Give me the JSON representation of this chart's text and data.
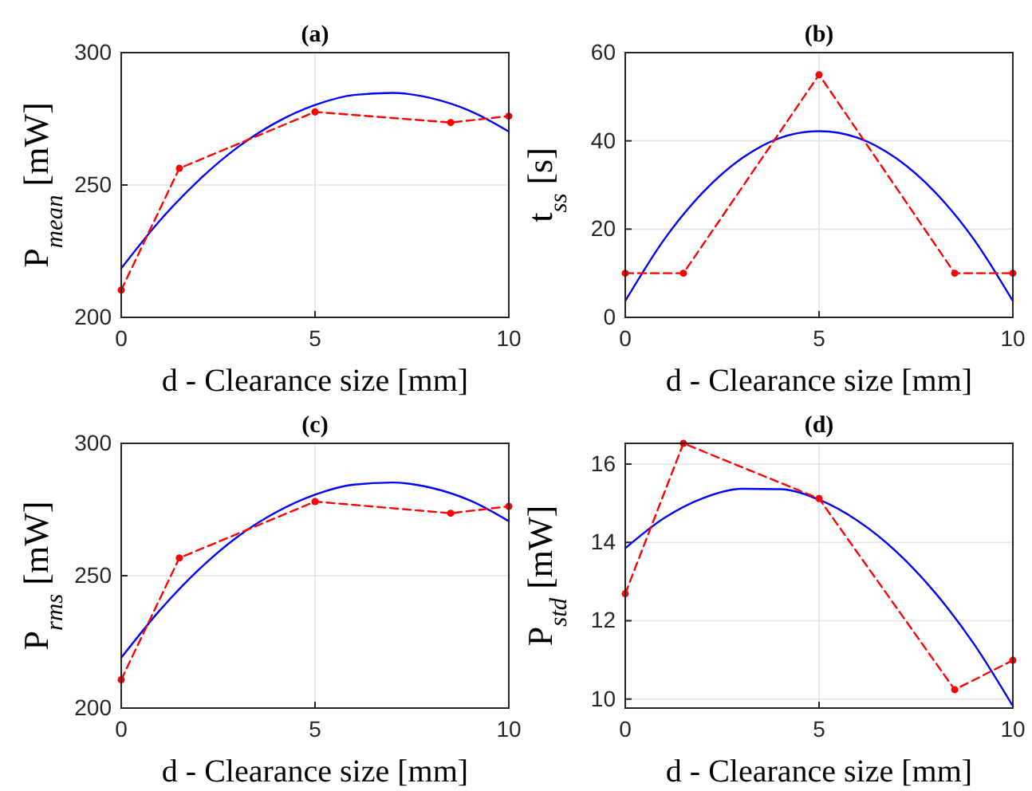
{
  "chart_data": [
    {
      "type": "line",
      "title": "(a)",
      "xlabel": "d - Clearance size [mm]",
      "ylabel": "P$_{mean}$ [mW]",
      "xlim": [
        0,
        10
      ],
      "xticks": [
        0,
        5,
        10
      ],
      "ylim": [
        200,
        300
      ],
      "yticks": [
        200,
        250,
        300
      ],
      "grid": true,
      "series": [
        {
          "type": "line",
          "color": "#0000ff",
          "line_style": "solid",
          "marker": "none",
          "x": [
            0,
            1,
            2,
            3,
            4,
            5,
            6,
            7,
            8,
            9,
            10
          ],
          "values": [
            218.5,
            236.6,
            251.8,
            264.2,
            273.6,
            280.2,
            284.0,
            284.8,
            282.8,
            278.0,
            270.2
          ]
        },
        {
          "type": "line",
          "color": "#ff0000",
          "line_style": "dashed",
          "marker": "circle",
          "x": [
            0,
            1.5,
            5,
            8.5,
            10
          ],
          "values": [
            210.3,
            256.3,
            277.6,
            273.6,
            276.0
          ]
        }
      ]
    },
    {
      "type": "line",
      "title": "(b)",
      "xlabel": "d - Clearance size [mm]",
      "ylabel": "t$_{ss}$ [s]",
      "xlim": [
        0,
        10
      ],
      "xticks": [
        0,
        5,
        10
      ],
      "ylim": [
        0,
        60
      ],
      "yticks": [
        0,
        20,
        40,
        60
      ],
      "grid": true,
      "series": [
        {
          "type": "line",
          "color": "#0000ff",
          "line_style": "solid",
          "marker": "none",
          "x": [
            0,
            1,
            2,
            3,
            4,
            5,
            6,
            7,
            8,
            9,
            10
          ],
          "values": [
            3.7,
            17.6,
            28.3,
            36.0,
            40.7,
            42.2,
            40.7,
            36.0,
            28.3,
            17.6,
            3.7
          ]
        },
        {
          "type": "line",
          "color": "#ff0000",
          "line_style": "dashed",
          "marker": "circle",
          "x": [
            0,
            1.5,
            5,
            8.5,
            10
          ],
          "values": [
            10,
            10,
            55,
            10,
            10
          ]
        }
      ]
    },
    {
      "type": "line",
      "title": "(c)",
      "xlabel": "d - Clearance size [mm]",
      "ylabel": "P$_{rms}$ [mW]",
      "xlim": [
        0,
        10
      ],
      "xticks": [
        0,
        5,
        10
      ],
      "ylim": [
        200,
        300
      ],
      "yticks": [
        200,
        250,
        300
      ],
      "grid": true,
      "series": [
        {
          "type": "line",
          "color": "#0000ff",
          "line_style": "solid",
          "marker": "none",
          "x": [
            0,
            1,
            2,
            3,
            4,
            5,
            6,
            7,
            8,
            9,
            10
          ],
          "values": [
            219.0,
            237.0,
            252.3,
            264.7,
            274.0,
            280.6,
            284.4,
            285.2,
            283.2,
            278.4,
            270.6
          ]
        },
        {
          "type": "line",
          "color": "#ff0000",
          "line_style": "dashed",
          "marker": "circle",
          "x": [
            0,
            1.5,
            5,
            8.5,
            10
          ],
          "values": [
            210.7,
            256.7,
            278.0,
            273.6,
            276.2
          ]
        }
      ]
    },
    {
      "type": "line",
      "title": "(d)",
      "xlabel": "d - Clearance size [mm]",
      "ylabel": "P$_{std}$ [mW]",
      "xlim": [
        0,
        10
      ],
      "xticks": [
        0,
        5,
        10
      ],
      "ylim": [
        9.77,
        16.53
      ],
      "yticks": [
        10,
        12,
        14,
        16
      ],
      "grid": true,
      "series": [
        {
          "type": "line",
          "color": "#0000ff",
          "line_style": "solid",
          "marker": "none",
          "x": [
            0,
            1,
            2,
            3,
            4,
            5,
            6,
            7,
            8,
            9,
            10
          ],
          "values": [
            13.85,
            14.62,
            15.13,
            15.37,
            15.36,
            15.09,
            14.55,
            13.76,
            12.71,
            11.4,
            9.82
          ]
        },
        {
          "type": "line",
          "color": "#ff0000",
          "line_style": "dashed",
          "marker": "circle",
          "x": [
            0,
            1.5,
            5,
            8.5,
            10
          ],
          "values": [
            12.69,
            16.53,
            15.12,
            10.24,
            10.99
          ]
        }
      ]
    }
  ]
}
